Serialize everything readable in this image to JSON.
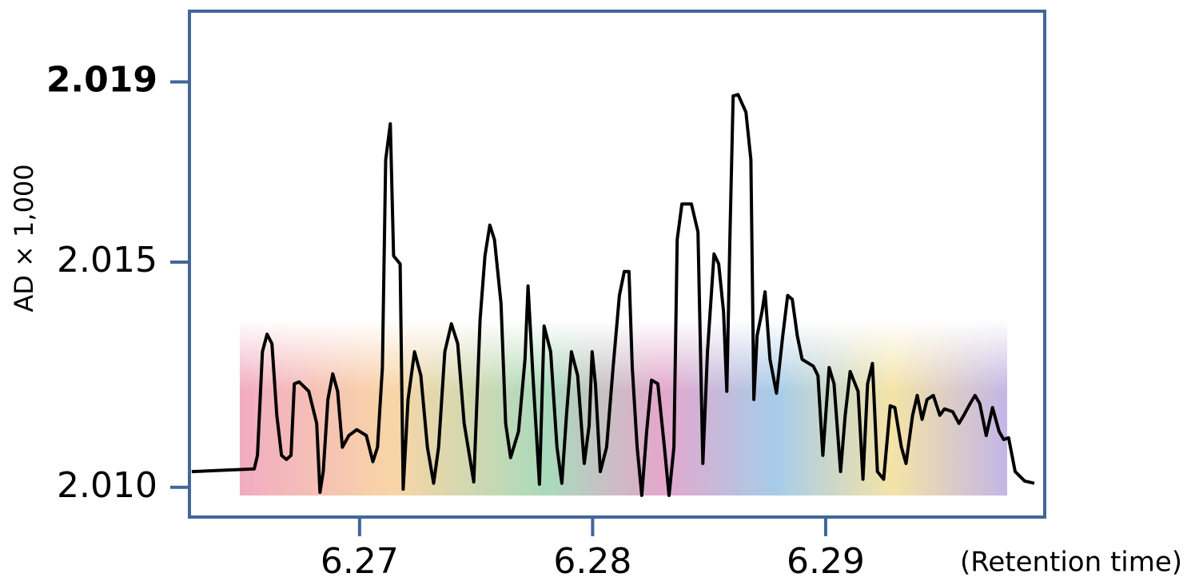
{
  "chart_data": {
    "type": "line",
    "y_label": "AD × 1,000",
    "x_label": "(Retention time)",
    "x": [
      6.2628,
      6.26548,
      6.26562,
      6.26583,
      6.26603,
      6.26624,
      6.26645,
      6.26665,
      6.26686,
      6.26706,
      6.2672,
      6.26741,
      6.26782,
      6.26816,
      6.2683,
      6.26844,
      6.26864,
      6.26885,
      6.26906,
      6.26926,
      6.26954,
      6.26988,
      6.27029,
      6.27057,
      6.27077,
      6.27098,
      6.27112,
      6.27132,
      6.27146,
      6.27174,
      6.27187,
      6.27208,
      6.27236,
      6.27263,
      6.27291,
      6.27318,
      6.27339,
      6.27366,
      6.27394,
      6.27421,
      6.27449,
      6.2749,
      6.27517,
      6.27538,
      6.27559,
      6.27579,
      6.27607,
      6.27627,
      6.27648,
      6.27682,
      6.2771,
      6.27723,
      6.27744,
      6.27772,
      6.27792,
      6.2782,
      6.27847,
      6.27868,
      6.27888,
      6.27909,
      6.27936,
      6.27964,
      6.27985,
      6.27998,
      6.28012,
      6.28033,
      6.2806,
      6.28088,
      6.28115,
      6.28136,
      6.28156,
      6.2817,
      6.28191,
      6.28211,
      6.28232,
      6.28253,
      6.2828,
      6.28308,
      6.28328,
      6.28349,
      6.28363,
      6.28383,
      6.28424,
      6.28452,
      6.28473,
      6.28493,
      6.28521,
      6.28541,
      6.28562,
      6.28576,
      6.28589,
      6.28603,
      6.28624,
      6.28658,
      6.28679,
      6.28692,
      6.28706,
      6.28727,
      6.2874,
      6.28761,
      6.28789,
      6.28816,
      6.28837,
      6.28857,
      6.28878,
      6.28899,
      6.28947,
      6.28967,
      6.28988,
      6.29015,
      6.29036,
      6.29064,
      6.29084,
      6.29105,
      6.29139,
      6.2916,
      6.2918,
      6.29201,
      6.29222,
      6.29249,
      6.29277,
      6.29297,
      6.29325,
      6.29345,
      6.29373,
      6.29393,
      6.29414,
      6.29435,
      6.29462,
      6.2949,
      6.2951,
      6.29545,
      6.29572,
      6.29593,
      6.2962,
      6.29641,
      6.29661,
      6.29689,
      6.29716,
      6.29744,
      6.29764,
      6.29785,
      6.29813,
      6.29854,
      6.29895
    ],
    "values": [
      2.01035,
      2.01041,
      2.01071,
      2.01301,
      2.0134,
      2.01319,
      2.0116,
      2.01071,
      2.01062,
      2.01071,
      2.0123,
      2.01234,
      2.01213,
      2.01142,
      2.00989,
      2.01035,
      2.01195,
      2.01252,
      2.01213,
      2.01089,
      2.01115,
      2.01128,
      2.01115,
      2.01057,
      2.01089,
      2.01266,
      2.01727,
      2.01807,
      2.01514,
      2.01496,
      2.00996,
      2.01195,
      2.01301,
      2.01248,
      2.01089,
      2.01009,
      2.01089,
      2.01301,
      2.01363,
      2.01319,
      2.01142,
      2.01012,
      2.01372,
      2.01514,
      2.01582,
      2.0155,
      2.01408,
      2.01142,
      2.01066,
      2.01124,
      2.01284,
      2.01447,
      2.01248,
      2.01007,
      2.01358,
      2.01301,
      2.01089,
      2.01009,
      2.0116,
      2.01301,
      2.01248,
      2.01053,
      2.01137,
      2.01301,
      2.0123,
      2.01035,
      2.01089,
      2.01266,
      2.01426,
      2.01479,
      2.01479,
      2.01266,
      2.01089,
      2.00982,
      2.01124,
      2.01238,
      2.0123,
      2.01089,
      2.00982,
      2.01089,
      2.0155,
      2.01629,
      2.01629,
      2.01567,
      2.01053,
      2.01301,
      2.01518,
      2.01496,
      2.0139,
      2.01213,
      2.0155,
      2.01869,
      2.01872,
      2.01833,
      2.01727,
      2.01195,
      2.01337,
      2.0139,
      2.01434,
      2.01284,
      2.01209,
      2.01337,
      2.01426,
      2.01417,
      2.01337,
      2.01284,
      2.01269,
      2.01248,
      2.01071,
      2.01266,
      2.0123,
      2.01035,
      2.0116,
      2.01257,
      2.01213,
      2.01018,
      2.0123,
      2.01275,
      2.01035,
      2.01018,
      2.01181,
      2.01177,
      2.01089,
      2.01053,
      2.0116,
      2.01204,
      2.01151,
      2.01195,
      2.01204,
      2.0116,
      2.01174,
      2.01168,
      2.01142,
      2.0116,
      2.01186,
      2.01204,
      2.01186,
      2.01115,
      2.01177,
      2.01124,
      2.01106,
      2.0111,
      2.01035,
      2.01014,
      2.01009
    ],
    "color": "#000000",
    "axis_color": "#41679a",
    "xlim": [
      6.2627,
      6.2994
    ],
    "ylim": [
      2.00934,
      2.02057
    ],
    "xticks": [
      6.27,
      6.28,
      6.29
    ],
    "yticks": [
      {
        "value": 2.01,
        "label": "2.010"
      },
      2.015,
      2.019
    ],
    "ytick_colors": [
      "#000000",
      "#000000",
      "#ff0000"
    ]
  }
}
